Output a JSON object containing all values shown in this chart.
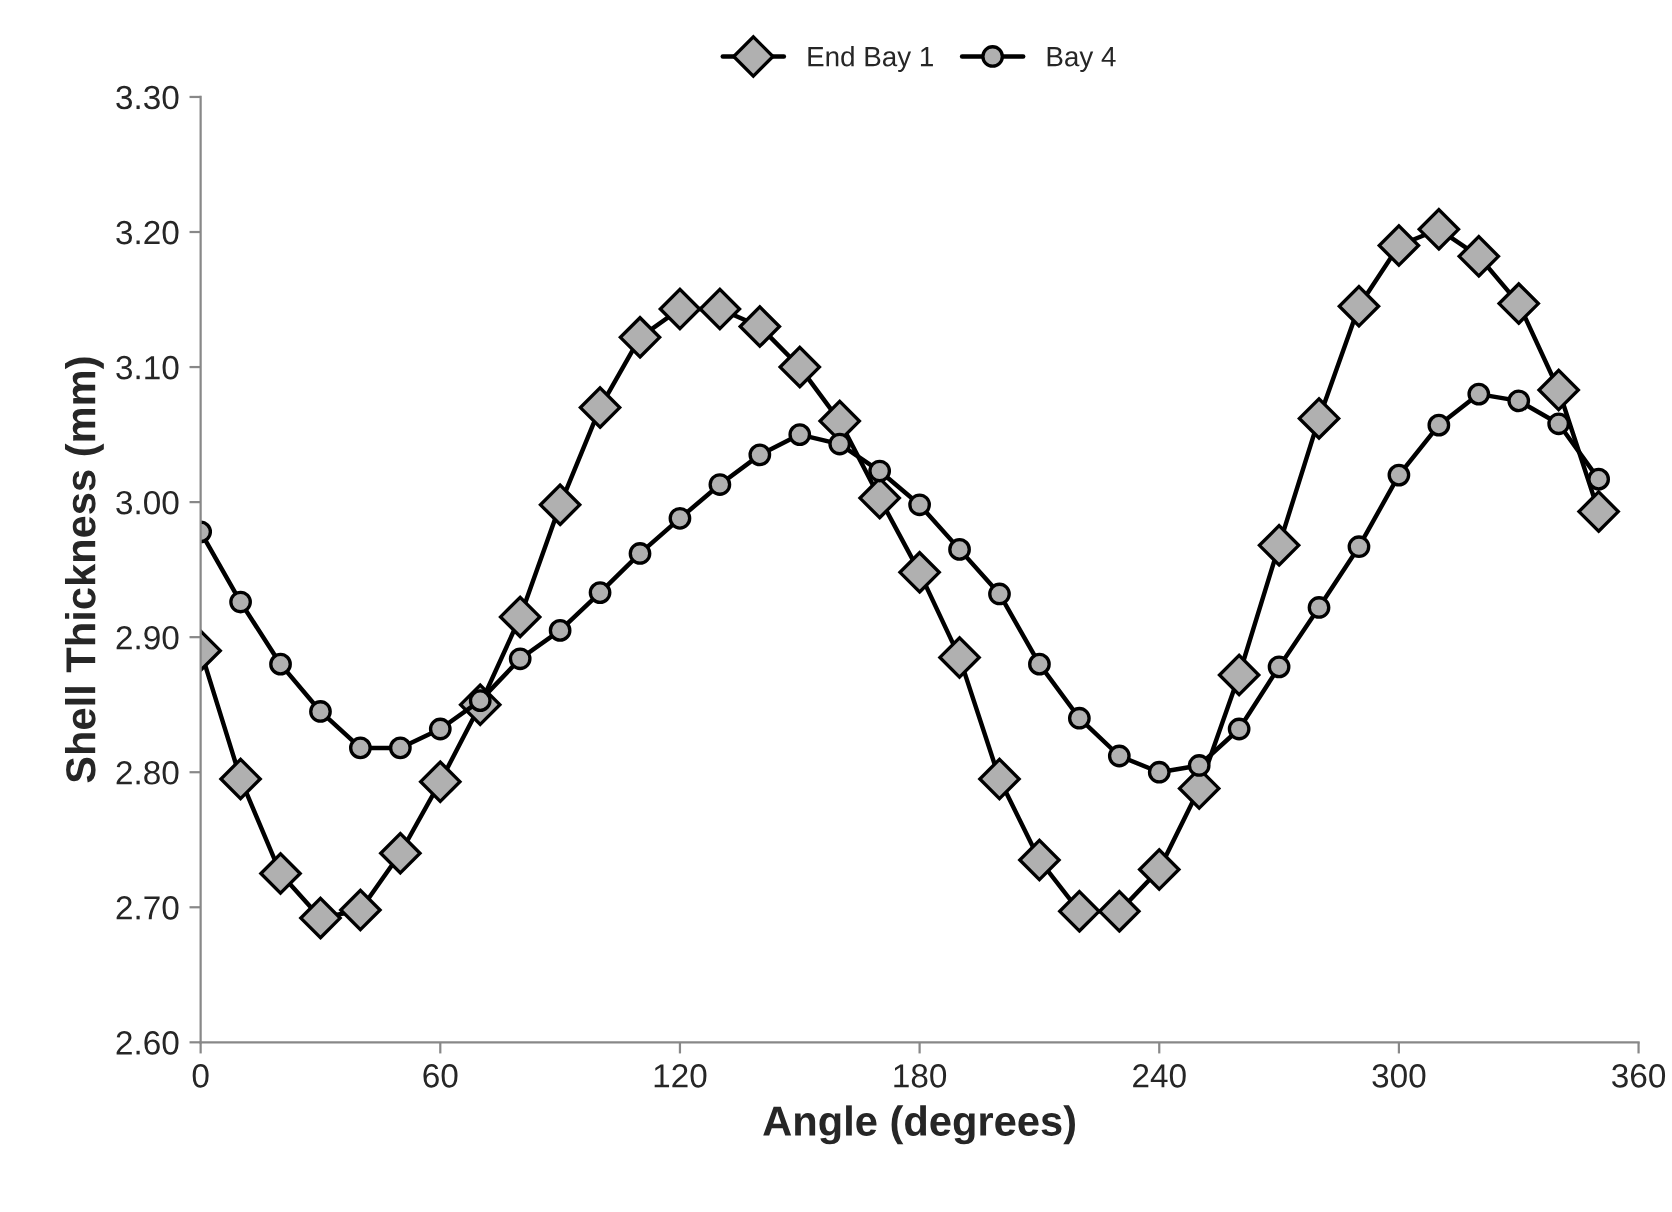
{
  "chart_data": {
    "type": "line",
    "xlabel": "Angle (degrees)",
    "ylabel": "Shell Thickness (mm)",
    "x": [
      0,
      10,
      20,
      30,
      40,
      50,
      60,
      70,
      80,
      90,
      100,
      110,
      120,
      130,
      140,
      150,
      160,
      170,
      180,
      190,
      200,
      210,
      220,
      230,
      240,
      250,
      260,
      270,
      280,
      290,
      300,
      310,
      320,
      330,
      340,
      350
    ],
    "series": [
      {
        "name": "End Bay 1",
        "color": "#000000",
        "marker": "diamond",
        "values": [
          2.89,
          2.795,
          2.725,
          2.692,
          2.698,
          2.74,
          2.793,
          2.85,
          2.915,
          2.998,
          3.07,
          3.122,
          3.143,
          3.143,
          3.13,
          3.1,
          3.06,
          3.003,
          2.948,
          2.885,
          2.795,
          2.735,
          2.697,
          2.697,
          2.728,
          2.788,
          2.872,
          2.968,
          3.062,
          3.145,
          3.19,
          3.202,
          3.182,
          3.147,
          3.083,
          2.993
        ]
      },
      {
        "name": "Bay 4",
        "color": "#000000",
        "marker": "circle",
        "values": [
          2.978,
          2.926,
          2.88,
          2.845,
          2.818,
          2.818,
          2.832,
          2.853,
          2.884,
          2.905,
          2.933,
          2.962,
          2.988,
          3.013,
          3.035,
          3.05,
          3.043,
          3.023,
          2.998,
          2.965,
          2.932,
          2.88,
          2.84,
          2.812,
          2.8,
          2.805,
          2.832,
          2.878,
          2.922,
          2.967,
          3.02,
          3.057,
          3.08,
          3.075,
          3.058,
          3.017
        ]
      }
    ],
    "xlim": [
      0,
      360
    ],
    "xticks": [
      0,
      60,
      120,
      180,
      240,
      300,
      360
    ],
    "ylim": [
      2.6,
      3.3
    ],
    "yticks": [
      {
        "value": 2.6,
        "label": "2.60"
      },
      {
        "value": 2.7,
        "label": "2.70"
      },
      {
        "value": 2.8,
        "label": "2.80"
      },
      {
        "value": 2.9,
        "label": "2.90"
      },
      {
        "value": 3.0,
        "label": "3.00"
      },
      {
        "value": 3.1,
        "label": "3.10"
      },
      {
        "value": 3.2,
        "label": "3.20"
      },
      {
        "value": 3.3,
        "label": "3.30"
      }
    ],
    "legend": "top",
    "line_style": "solid"
  }
}
